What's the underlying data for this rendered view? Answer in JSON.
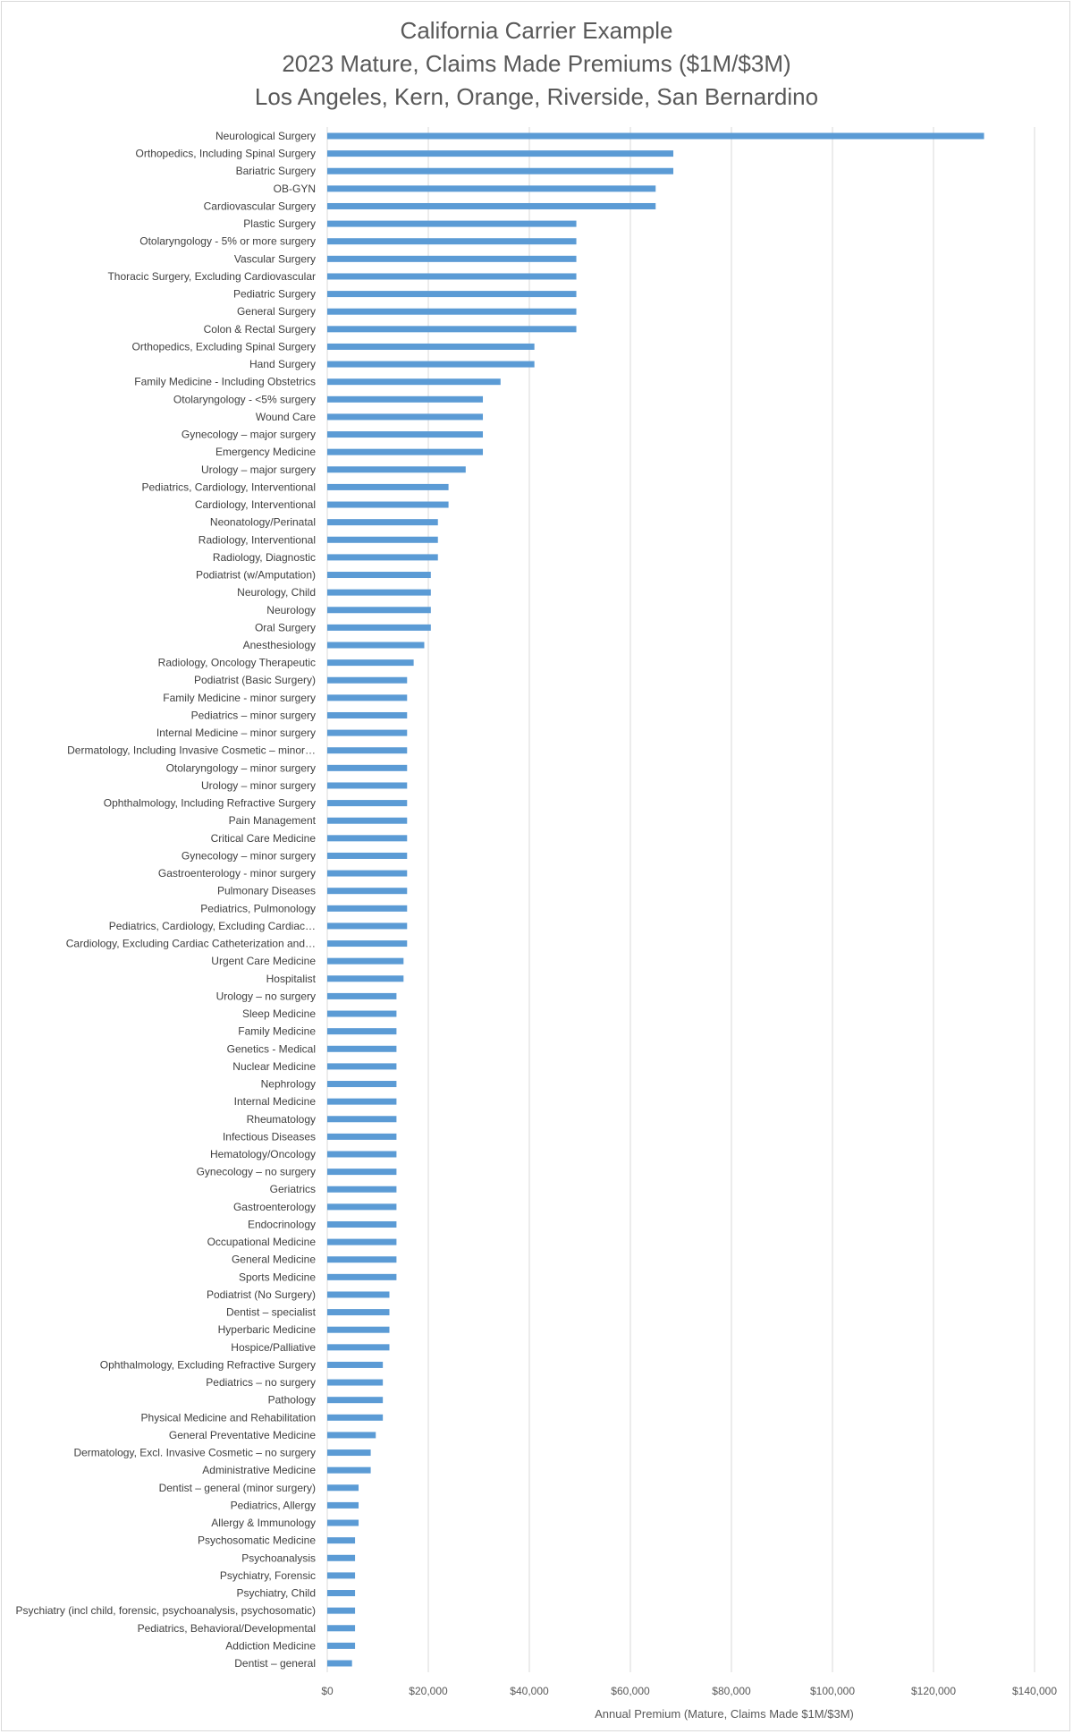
{
  "chart_data": {
    "type": "bar",
    "orientation": "horizontal",
    "title_lines": [
      "California Carrier Example",
      "2023 Mature, Claims Made Premiums ($1M/$3M)",
      "Los Angeles, Kern, Orange, Riverside, San Bernardino"
    ],
    "xlabel": "Annual Premium (Mature, Claims Made $1M/$3M)",
    "ylabel": "",
    "xlim": [
      0,
      140000
    ],
    "x_ticks": [
      0,
      20000,
      40000,
      60000,
      80000,
      100000,
      120000,
      140000
    ],
    "x_tick_labels": [
      "$0",
      "$20,000",
      "$40,000",
      "$60,000",
      "$80,000",
      "$100,000",
      "$120,000",
      "$140,000"
    ],
    "grid": "vertical major gridlines",
    "legend": "none",
    "bar_color": "#5b9bd5",
    "categories": [
      "Neurological Surgery",
      "Orthopedics, Including Spinal Surgery",
      "Bariatric Surgery",
      "OB-GYN",
      "Cardiovascular Surgery",
      "Plastic Surgery",
      "Otolaryngology - 5% or more surgery",
      "Vascular Surgery",
      "Thoracic Surgery, Excluding Cardiovascular",
      "Pediatric Surgery",
      "General Surgery",
      "Colon & Rectal Surgery",
      "Orthopedics, Excluding Spinal Surgery",
      "Hand Surgery",
      "Family Medicine - Including Obstetrics",
      "Otolaryngology - <5% surgery",
      "Wound Care",
      "Gynecology – major surgery",
      "Emergency Medicine",
      "Urology – major surgery",
      "Pediatrics, Cardiology, Interventional",
      "Cardiology, Interventional",
      "Neonatology/Perinatal",
      "Radiology, Interventional",
      "Radiology, Diagnostic",
      "Podiatrist (w/Amputation)",
      "Neurology, Child",
      "Neurology",
      "Oral Surgery",
      "Anesthesiology",
      "Radiology, Oncology Therapeutic",
      "Podiatrist (Basic Surgery)",
      "Family Medicine - minor surgery",
      "Pediatrics – minor surgery",
      "Internal Medicine – minor surgery",
      "Dermatology, Including Invasive Cosmetic – minor…",
      "Otolaryngology – minor surgery",
      "Urology – minor surgery",
      "Ophthalmology, Including Refractive Surgery",
      "Pain Management",
      "Critical Care Medicine",
      "Gynecology – minor surgery",
      "Gastroenterology - minor surgery",
      "Pulmonary Diseases",
      "Pediatrics, Pulmonology",
      "Pediatrics, Cardiology, Excluding Cardiac…",
      "Cardiology, Excluding Cardiac Catheterization and…",
      "Urgent Care Medicine",
      "Hospitalist",
      "Urology – no surgery",
      "Sleep Medicine",
      "Family Medicine",
      "Genetics - Medical",
      "Nuclear Medicine",
      "Nephrology",
      "Internal Medicine",
      "Rheumatology",
      "Infectious Diseases",
      "Hematology/Oncology",
      "Gynecology – no surgery",
      "Geriatrics",
      "Gastroenterology",
      "Endocrinology",
      "Occupational Medicine",
      "General Medicine",
      "Sports Medicine",
      "Podiatrist (No Surgery)",
      "Dentist – specialist",
      "Hyperbaric Medicine",
      "Hospice/Palliative",
      "Ophthalmology, Excluding Refractive Surgery",
      "Pediatrics – no surgery",
      "Pathology",
      "Physical Medicine and Rehabilitation",
      "General Preventative Medicine",
      "Dermatology, Excl. Invasive Cosmetic – no surgery",
      "Administrative Medicine",
      "Dentist – general (minor surgery)",
      "Pediatrics, Allergy",
      "Allergy & Immunology",
      "Psychosomatic Medicine",
      "Psychoanalysis",
      "Psychiatry, Forensic",
      "Psychiatry, Child",
      "Psychiatry (incl child, forensic, psychoanalysis, psychosomatic)",
      "Pediatrics, Behavioral/Developmental",
      "Addiction Medicine",
      "Dentist – general"
    ],
    "values": [
      130000,
      68500,
      68500,
      65000,
      65000,
      49300,
      49300,
      49300,
      49300,
      49300,
      49300,
      49300,
      41000,
      41000,
      34300,
      30800,
      30800,
      30800,
      30800,
      27400,
      24000,
      24000,
      21900,
      21900,
      21900,
      20500,
      20500,
      20500,
      20500,
      19200,
      17100,
      15800,
      15800,
      15800,
      15800,
      15800,
      15800,
      15800,
      15800,
      15800,
      15800,
      15800,
      15800,
      15800,
      15800,
      15800,
      15800,
      15100,
      15100,
      13700,
      13700,
      13700,
      13700,
      13700,
      13700,
      13700,
      13700,
      13700,
      13700,
      13700,
      13700,
      13700,
      13700,
      13700,
      13700,
      13700,
      12300,
      12300,
      12300,
      12300,
      11000,
      11000,
      11000,
      11000,
      9600,
      8600,
      8600,
      6200,
      6200,
      6200,
      5500,
      5500,
      5500,
      5500,
      5500,
      5500,
      5500,
      4900
    ]
  }
}
